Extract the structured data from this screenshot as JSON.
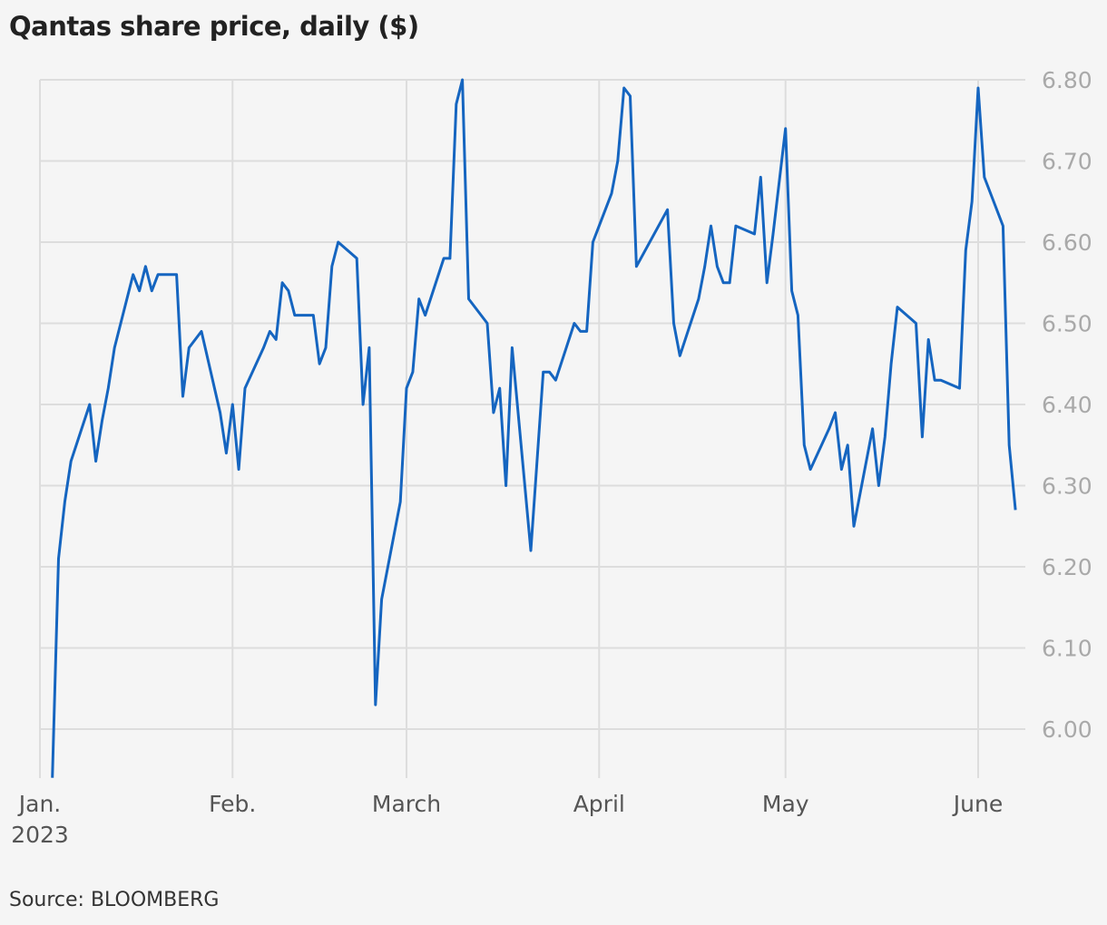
{
  "title": "Qantas share price, daily ($)",
  "source": "Source: BLOOMBERG",
  "chart_data": {
    "type": "line",
    "title": "Qantas share price, daily ($)",
    "xlabel": "",
    "ylabel": "",
    "ylim": [
      5.94,
      6.8
    ],
    "yticks": [
      6.0,
      6.1,
      6.2,
      6.3,
      6.4,
      6.5,
      6.6,
      6.7,
      6.8
    ],
    "ytick_labels": [
      "6.00",
      "6.10",
      "6.20",
      "6.30",
      "6.40",
      "6.50",
      "6.60",
      "6.70",
      "6.80"
    ],
    "y_axis_position": "right",
    "xlim": [
      "2023-01-01",
      "2023-06-09"
    ],
    "xticks": [
      {
        "date": "2023-01-01",
        "label": "Jan.",
        "sublabel": "2023"
      },
      {
        "date": "2023-02-01",
        "label": "Feb.",
        "sublabel": ""
      },
      {
        "date": "2023-03-01",
        "label": "March",
        "sublabel": ""
      },
      {
        "date": "2023-04-01",
        "label": "April",
        "sublabel": ""
      },
      {
        "date": "2023-05-01",
        "label": "May",
        "sublabel": ""
      },
      {
        "date": "2023-06-01",
        "label": "June",
        "sublabel": ""
      }
    ],
    "grid": true,
    "line_color": "#1565c0",
    "grid_color": "#dddddd",
    "series": [
      {
        "values": [
          [
            "2023-01-03",
            5.94
          ],
          [
            "2023-01-04",
            6.21
          ],
          [
            "2023-01-05",
            6.28
          ],
          [
            "2023-01-06",
            6.33
          ],
          [
            "2023-01-09",
            6.4
          ],
          [
            "2023-01-10",
            6.33
          ],
          [
            "2023-01-11",
            6.38
          ],
          [
            "2023-01-12",
            6.42
          ],
          [
            "2023-01-13",
            6.47
          ],
          [
            "2023-01-16",
            6.56
          ],
          [
            "2023-01-17",
            6.54
          ],
          [
            "2023-01-18",
            6.57
          ],
          [
            "2023-01-19",
            6.54
          ],
          [
            "2023-01-20",
            6.56
          ],
          [
            "2023-01-23",
            6.56
          ],
          [
            "2023-01-24",
            6.41
          ],
          [
            "2023-01-25",
            6.47
          ],
          [
            "2023-01-27",
            6.49
          ],
          [
            "2023-01-30",
            6.39
          ],
          [
            "2023-01-31",
            6.34
          ],
          [
            "2023-02-01",
            6.4
          ],
          [
            "2023-02-02",
            6.32
          ],
          [
            "2023-02-03",
            6.42
          ],
          [
            "2023-02-06",
            6.47
          ],
          [
            "2023-02-07",
            6.49
          ],
          [
            "2023-02-08",
            6.48
          ],
          [
            "2023-02-09",
            6.55
          ],
          [
            "2023-02-10",
            6.54
          ],
          [
            "2023-02-11",
            6.51
          ],
          [
            "2023-02-14",
            6.51
          ],
          [
            "2023-02-15",
            6.45
          ],
          [
            "2023-02-16",
            6.47
          ],
          [
            "2023-02-17",
            6.57
          ],
          [
            "2023-02-18",
            6.6
          ],
          [
            "2023-02-21",
            6.58
          ],
          [
            "2023-02-22",
            6.4
          ],
          [
            "2023-02-23",
            6.47
          ],
          [
            "2023-02-24",
            6.03
          ],
          [
            "2023-02-25",
            6.16
          ],
          [
            "2023-02-28",
            6.28
          ],
          [
            "2023-03-01",
            6.42
          ],
          [
            "2023-03-02",
            6.44
          ],
          [
            "2023-03-03",
            6.53
          ],
          [
            "2023-03-04",
            6.51
          ],
          [
            "2023-03-07",
            6.58
          ],
          [
            "2023-03-08",
            6.58
          ],
          [
            "2023-03-09",
            6.77
          ],
          [
            "2023-03-10",
            6.8
          ],
          [
            "2023-03-11",
            6.53
          ],
          [
            "2023-03-14",
            6.5
          ],
          [
            "2023-03-15",
            6.39
          ],
          [
            "2023-03-16",
            6.42
          ],
          [
            "2023-03-17",
            6.3
          ],
          [
            "2023-03-18",
            6.47
          ],
          [
            "2023-03-21",
            6.22
          ],
          [
            "2023-03-23",
            6.44
          ],
          [
            "2023-03-24",
            6.44
          ],
          [
            "2023-03-25",
            6.43
          ],
          [
            "2023-03-28",
            6.5
          ],
          [
            "2023-03-29",
            6.49
          ],
          [
            "2023-03-30",
            6.49
          ],
          [
            "2023-03-31",
            6.6
          ],
          [
            "2023-04-01",
            6.62
          ],
          [
            "2023-04-03",
            6.66
          ],
          [
            "2023-04-04",
            6.7
          ],
          [
            "2023-04-05",
            6.79
          ],
          [
            "2023-04-06",
            6.78
          ],
          [
            "2023-04-07",
            6.57
          ],
          [
            "2023-04-12",
            6.64
          ],
          [
            "2023-04-13",
            6.5
          ],
          [
            "2023-04-14",
            6.46
          ],
          [
            "2023-04-17",
            6.53
          ],
          [
            "2023-04-18",
            6.57
          ],
          [
            "2023-04-19",
            6.62
          ],
          [
            "2023-04-20",
            6.57
          ],
          [
            "2023-04-21",
            6.55
          ],
          [
            "2023-04-22",
            6.55
          ],
          [
            "2023-04-23",
            6.62
          ],
          [
            "2023-04-26",
            6.61
          ],
          [
            "2023-04-27",
            6.68
          ],
          [
            "2023-04-28",
            6.55
          ],
          [
            "2023-04-29",
            6.61
          ],
          [
            "2023-05-01",
            6.74
          ],
          [
            "2023-05-02",
            6.54
          ],
          [
            "2023-05-03",
            6.51
          ],
          [
            "2023-05-04",
            6.35
          ],
          [
            "2023-05-05",
            6.32
          ],
          [
            "2023-05-08",
            6.37
          ],
          [
            "2023-05-09",
            6.39
          ],
          [
            "2023-05-10",
            6.32
          ],
          [
            "2023-05-11",
            6.35
          ],
          [
            "2023-05-12",
            6.25
          ],
          [
            "2023-05-15",
            6.37
          ],
          [
            "2023-05-16",
            6.3
          ],
          [
            "2023-05-17",
            6.36
          ],
          [
            "2023-05-18",
            6.45
          ],
          [
            "2023-05-19",
            6.52
          ],
          [
            "2023-05-22",
            6.5
          ],
          [
            "2023-05-23",
            6.36
          ],
          [
            "2023-05-24",
            6.48
          ],
          [
            "2023-05-25",
            6.43
          ],
          [
            "2023-05-26",
            6.43
          ],
          [
            "2023-05-29",
            6.42
          ],
          [
            "2023-05-30",
            6.59
          ],
          [
            "2023-05-31",
            6.65
          ],
          [
            "2023-06-01",
            6.79
          ],
          [
            "2023-06-02",
            6.68
          ],
          [
            "2023-06-05",
            6.62
          ],
          [
            "2023-06-06",
            6.35
          ],
          [
            "2023-06-07",
            6.27
          ]
        ]
      }
    ]
  }
}
